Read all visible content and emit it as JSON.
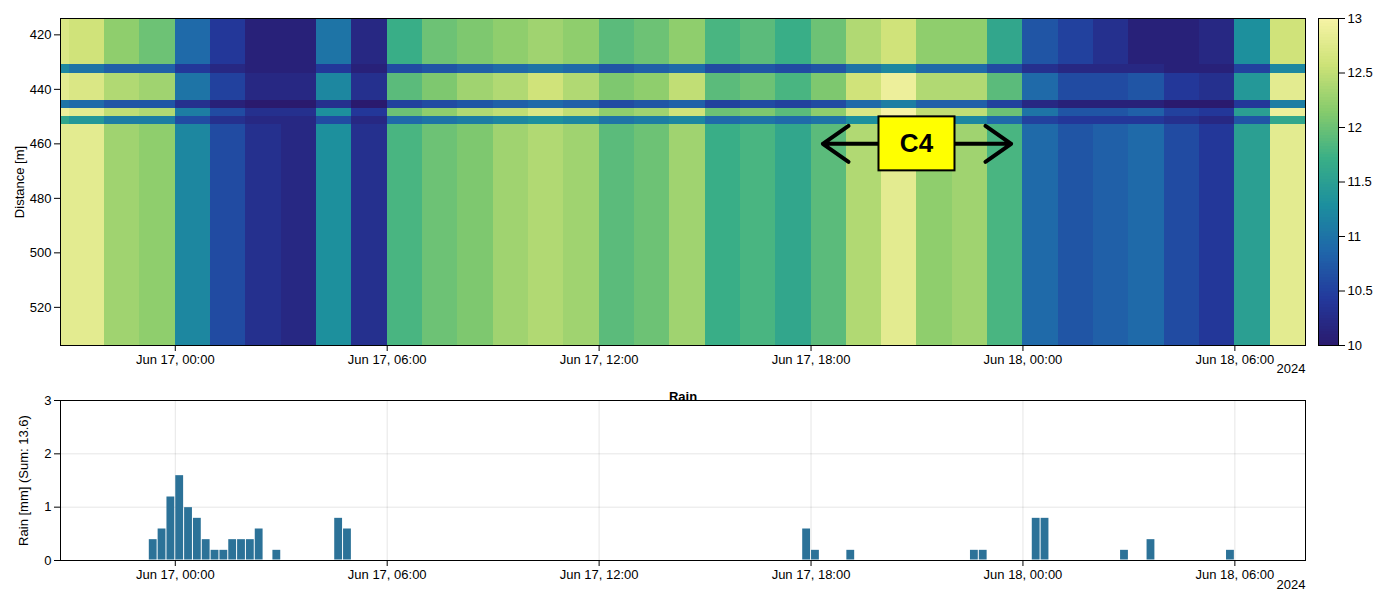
{
  "chart_data": [
    {
      "type": "heatmap",
      "y_label": "Distance [m]",
      "x": [
        "2024-06-16T20:45",
        "2024-06-16T21:00",
        "2024-06-16T22:00",
        "2024-06-16T23:00",
        "2024-06-17T00:00",
        "2024-06-17T01:00",
        "2024-06-17T02:00",
        "2024-06-17T03:00",
        "2024-06-17T04:00",
        "2024-06-17T05:00",
        "2024-06-17T06:00",
        "2024-06-17T07:00",
        "2024-06-17T08:00",
        "2024-06-17T09:00",
        "2024-06-17T10:00",
        "2024-06-17T11:00",
        "2024-06-17T12:00",
        "2024-06-17T13:00",
        "2024-06-17T14:00",
        "2024-06-17T15:00",
        "2024-06-17T16:00",
        "2024-06-17T17:00",
        "2024-06-17T18:00",
        "2024-06-17T19:00",
        "2024-06-17T20:00",
        "2024-06-17T21:00",
        "2024-06-17T22:00",
        "2024-06-17T23:00",
        "2024-06-18T00:00",
        "2024-06-18T01:00",
        "2024-06-18T02:00",
        "2024-06-18T03:00",
        "2024-06-18T04:00",
        "2024-06-18T05:00",
        "2024-06-18T06:00",
        "2024-06-18T07:00"
      ],
      "distance_edges": [
        414,
        431,
        434,
        444,
        447,
        450,
        453,
        534
      ],
      "values": [
        [
          12.7,
          12.6,
          12.2,
          12.0,
          10.9,
          10.4,
          10.1,
          10.1,
          11.0,
          10.2,
          11.7,
          12.0,
          12.1,
          12.2,
          12.3,
          12.2,
          11.9,
          12.0,
          12.2,
          11.8,
          11.9,
          11.7,
          12.0,
          12.4,
          12.6,
          12.2,
          12.2,
          11.6,
          10.7,
          10.5,
          10.3,
          10.1,
          10.1,
          10.2,
          11.3,
          12.6
        ],
        [
          11.2,
          11.0,
          10.8,
          10.8,
          10.4,
          10.2,
          10.1,
          10.1,
          10.4,
          10.1,
          10.6,
          10.7,
          10.8,
          10.9,
          11.0,
          10.9,
          10.7,
          10.8,
          10.9,
          10.6,
          10.7,
          10.6,
          10.7,
          11.0,
          11.2,
          10.9,
          10.9,
          10.6,
          10.3,
          10.2,
          10.2,
          10.2,
          10.1,
          10.1,
          10.5,
          11.2
        ],
        [
          12.8,
          12.7,
          12.4,
          12.3,
          11.0,
          10.5,
          10.2,
          10.2,
          11.2,
          10.3,
          11.9,
          12.1,
          12.3,
          12.4,
          12.6,
          12.4,
          12.1,
          12.2,
          12.5,
          11.9,
          12.0,
          11.8,
          12.1,
          12.6,
          12.9,
          12.4,
          12.4,
          11.9,
          10.9,
          10.6,
          10.6,
          10.7,
          10.4,
          10.3,
          11.4,
          12.8
        ],
        [
          11.0,
          10.9,
          10.7,
          10.7,
          10.3,
          10.1,
          10.0,
          10.0,
          10.3,
          10.0,
          10.5,
          10.6,
          10.7,
          10.8,
          10.9,
          10.8,
          10.6,
          10.7,
          10.8,
          10.5,
          10.6,
          10.5,
          10.6,
          10.9,
          11.1,
          10.8,
          10.8,
          10.5,
          10.2,
          10.1,
          10.1,
          10.1,
          10.0,
          10.0,
          10.4,
          11.1
        ],
        [
          12.9,
          12.8,
          12.5,
          12.4,
          11.1,
          10.6,
          10.3,
          10.3,
          11.3,
          10.4,
          12.0,
          12.2,
          12.4,
          12.5,
          12.7,
          12.5,
          12.2,
          12.3,
          12.6,
          12.0,
          12.1,
          11.9,
          12.2,
          12.7,
          13.0,
          12.5,
          12.5,
          12.0,
          11.0,
          10.7,
          10.7,
          10.8,
          10.5,
          10.4,
          11.5,
          12.9
        ],
        [
          11.6,
          11.4,
          11.1,
          11.1,
          10.6,
          10.3,
          10.2,
          10.2,
          10.6,
          10.2,
          10.9,
          11.0,
          11.1,
          11.2,
          11.3,
          11.2,
          11.0,
          11.1,
          11.2,
          10.9,
          11.0,
          10.9,
          11.0,
          11.3,
          11.6,
          11.2,
          11.2,
          10.9,
          10.5,
          10.4,
          10.4,
          10.4,
          10.3,
          10.2,
          10.7,
          11.6
        ],
        [
          12.8,
          12.8,
          12.3,
          12.2,
          11.2,
          10.6,
          10.3,
          10.2,
          11.3,
          10.3,
          11.8,
          12.0,
          12.1,
          12.3,
          12.4,
          12.3,
          11.9,
          12.0,
          12.3,
          11.7,
          11.8,
          11.6,
          11.9,
          12.4,
          12.8,
          12.2,
          12.3,
          11.8,
          10.9,
          10.7,
          10.8,
          10.9,
          10.6,
          10.4,
          11.5,
          12.8
        ]
      ],
      "xlim": [
        "2024-06-16T20:45",
        "2024-06-18T08:00"
      ],
      "xticks": [
        {
          "value": "2024-06-17T00:00",
          "label": "Jun 17, 00:00"
        },
        {
          "value": "2024-06-17T06:00",
          "label": "Jun 17, 06:00"
        },
        {
          "value": "2024-06-17T12:00",
          "label": "Jun 17, 12:00"
        },
        {
          "value": "2024-06-17T18:00",
          "label": "Jun 17, 18:00"
        },
        {
          "value": "2024-06-18T00:00",
          "label": "Jun 18, 00:00"
        },
        {
          "value": "2024-06-18T06:00",
          "label": "Jun 18, 06:00"
        }
      ],
      "x_sublabel": "2024",
      "ylim": [
        414,
        534
      ],
      "yticks": [
        420,
        440,
        460,
        480,
        500,
        520
      ],
      "colorbar": {
        "lim": [
          10,
          13
        ],
        "ticks": [
          10,
          10.5,
          11,
          11.5,
          12,
          12.5,
          13
        ]
      },
      "annotations": [
        {
          "text": "C4",
          "x_start": "2024-06-17T18:20",
          "x_end": "2024-06-17T23:40",
          "y": 460
        }
      ]
    },
    {
      "type": "bar",
      "title": "Rain",
      "y_label": "Rain [mm] (Sum: 13.6)",
      "x": [
        "2024-06-16T23:15",
        "2024-06-16T23:30",
        "2024-06-16T23:45",
        "2024-06-17T00:00",
        "2024-06-17T00:15",
        "2024-06-17T00:30",
        "2024-06-17T00:45",
        "2024-06-17T01:00",
        "2024-06-17T01:15",
        "2024-06-17T01:30",
        "2024-06-17T01:45",
        "2024-06-17T02:00",
        "2024-06-17T02:15",
        "2024-06-17T02:45",
        "2024-06-17T04:30",
        "2024-06-17T04:45",
        "2024-06-17T17:45",
        "2024-06-17T18:00",
        "2024-06-17T19:00",
        "2024-06-17T22:30",
        "2024-06-17T22:45",
        "2024-06-18T00:15",
        "2024-06-18T00:30",
        "2024-06-18T02:45",
        "2024-06-18T03:30",
        "2024-06-18T05:45"
      ],
      "values": [
        0.4,
        0.6,
        1.2,
        1.6,
        1.0,
        0.8,
        0.4,
        0.2,
        0.2,
        0.4,
        0.4,
        0.4,
        0.6,
        0.2,
        0.8,
        0.6,
        0.6,
        0.2,
        0.2,
        0.2,
        0.2,
        0.8,
        0.8,
        0.2,
        0.4,
        0.2
      ],
      "color": "#2c7298",
      "xlim": [
        "2024-06-16T20:45",
        "2024-06-18T08:00"
      ],
      "xticks": [
        {
          "value": "2024-06-17T00:00",
          "label": "Jun 17, 00:00"
        },
        {
          "value": "2024-06-17T06:00",
          "label": "Jun 17, 06:00"
        },
        {
          "value": "2024-06-17T12:00",
          "label": "Jun 17, 12:00"
        },
        {
          "value": "2024-06-17T18:00",
          "label": "Jun 17, 18:00"
        },
        {
          "value": "2024-06-18T00:00",
          "label": "Jun 18, 00:00"
        },
        {
          "value": "2024-06-18T06:00",
          "label": "Jun 18, 06:00"
        }
      ],
      "x_sublabel": "2024",
      "ylim": [
        0,
        3
      ],
      "yticks": [
        0,
        1,
        2,
        3
      ],
      "grid": true
    }
  ]
}
